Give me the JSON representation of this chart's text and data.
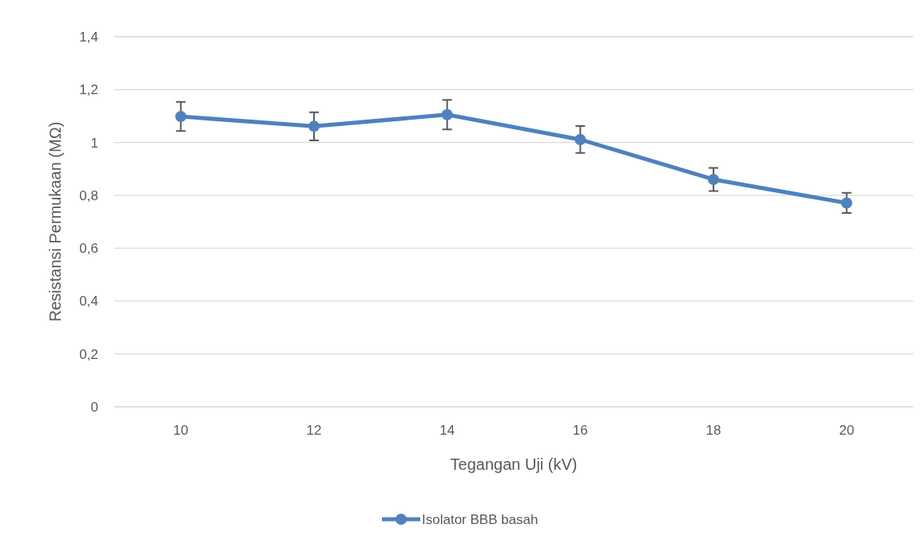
{
  "chart_data": {
    "type": "line",
    "xlabel": "Tegangan Uji (kV)",
    "ylabel": "Resistansi Permukaan (MΩ)",
    "categories": [
      "10",
      "12",
      "14",
      "16",
      "18",
      "20"
    ],
    "series": [
      {
        "name": "Isolator BBB basah",
        "color": "#4f81bd",
        "values": [
          1.098,
          1.061,
          1.105,
          1.011,
          0.86,
          0.771
        ],
        "errors": [
          0.055,
          0.053,
          0.056,
          0.051,
          0.044,
          0.038
        ]
      }
    ],
    "ylim": [
      0,
      1.4
    ],
    "yticks": [
      {
        "value": 0,
        "label": "0"
      },
      {
        "value": 0.2,
        "label": "0,2"
      },
      {
        "value": 0.4,
        "label": "0,4"
      },
      {
        "value": 0.6,
        "label": "0,6"
      },
      {
        "value": 0.8,
        "label": "0,8"
      },
      {
        "value": 1,
        "label": "1"
      },
      {
        "value": 1.2,
        "label": "1,2"
      },
      {
        "value": 1.4,
        "label": "1,4"
      }
    ],
    "grid": "y",
    "legend": "bottom",
    "marker": "circle",
    "line_style": "solid"
  }
}
